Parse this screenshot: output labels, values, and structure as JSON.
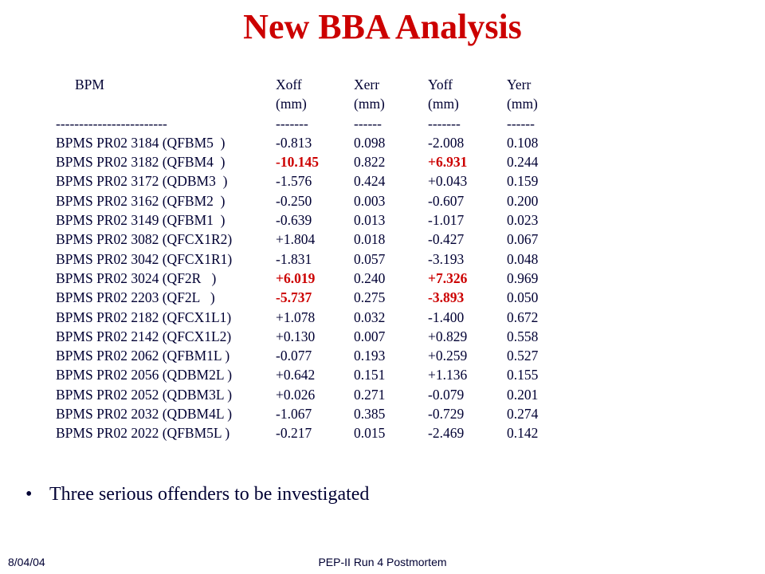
{
  "title": "New BBA Analysis",
  "table": {
    "header1": {
      "bpm": "BPM",
      "xoff": "Xoff",
      "xerr": "Xerr",
      "yoff": "Yoff",
      "yerr": "Yerr"
    },
    "header2": {
      "bpm": "",
      "xoff": "(mm)",
      "xerr": "(mm)",
      "yoff": "(mm)",
      "yerr": "(mm)"
    },
    "separator": {
      "bpm": "------------------------",
      "xoff": "-------",
      "xerr": "------",
      "yoff": "-------",
      "yerr": "------"
    },
    "rows": [
      {
        "bpm": "BPMS PR02 3184 (QFBM5  )",
        "xoff": "-0.813",
        "xerr": "0.098",
        "yoff": "-2.008",
        "yerr": "0.108",
        "xoff_hl": false,
        "yoff_hl": false
      },
      {
        "bpm": "BPMS PR02 3182 (QFBM4  )",
        "xoff": "-10.145",
        "xerr": "0.822",
        "yoff": "+6.931",
        "yerr": "0.244",
        "xoff_hl": true,
        "yoff_hl": true
      },
      {
        "bpm": "BPMS PR02 3172 (QDBM3  )",
        "xoff": "-1.576",
        "xerr": "0.424",
        "yoff": "+0.043",
        "yerr": "0.159",
        "xoff_hl": false,
        "yoff_hl": false
      },
      {
        "bpm": "BPMS PR02 3162 (QFBM2  )",
        "xoff": "-0.250",
        "xerr": "0.003",
        "yoff": "-0.607",
        "yerr": "0.200",
        "xoff_hl": false,
        "yoff_hl": false
      },
      {
        "bpm": "BPMS PR02 3149 (QFBM1  )",
        "xoff": "-0.639",
        "xerr": "0.013",
        "yoff": "-1.017",
        "yerr": "0.023",
        "xoff_hl": false,
        "yoff_hl": false
      },
      {
        "bpm": "BPMS PR02 3082 (QFCX1R2)",
        "xoff": "+1.804",
        "xerr": "0.018",
        "yoff": "-0.427",
        "yerr": "0.067",
        "xoff_hl": false,
        "yoff_hl": false
      },
      {
        "bpm": "BPMS PR02 3042 (QFCX1R1)",
        "xoff": "-1.831",
        "xerr": "0.057",
        "yoff": "-3.193",
        "yerr": "0.048",
        "xoff_hl": false,
        "yoff_hl": false
      },
      {
        "bpm": "BPMS PR02 3024 (QF2R   )",
        "xoff": "+6.019",
        "xerr": "0.240",
        "yoff": "+7.326",
        "yerr": "0.969",
        "xoff_hl": true,
        "yoff_hl": true
      },
      {
        "bpm": "BPMS PR02 2203 (QF2L   )",
        "xoff": "-5.737",
        "xerr": "0.275",
        "yoff": "-3.893",
        "yerr": "0.050",
        "xoff_hl": true,
        "yoff_hl": true
      },
      {
        "bpm": "BPMS PR02 2182 (QFCX1L1)",
        "xoff": "+1.078",
        "xerr": "0.032",
        "yoff": "-1.400",
        "yerr": "0.672",
        "xoff_hl": false,
        "yoff_hl": false
      },
      {
        "bpm": "BPMS PR02 2142 (QFCX1L2)",
        "xoff": "+0.130",
        "xerr": "0.007",
        "yoff": "+0.829",
        "yerr": "0.558",
        "xoff_hl": false,
        "yoff_hl": false
      },
      {
        "bpm": "BPMS PR02 2062 (QFBM1L )",
        "xoff": "-0.077",
        "xerr": "0.193",
        "yoff": "+0.259",
        "yerr": "0.527",
        "xoff_hl": false,
        "yoff_hl": false
      },
      {
        "bpm": "BPMS PR02 2056 (QDBM2L )",
        "xoff": "+0.642",
        "xerr": "0.151",
        "yoff": "+1.136",
        "yerr": "0.155",
        "xoff_hl": false,
        "yoff_hl": false
      },
      {
        "bpm": "BPMS PR02 2052 (QDBM3L )",
        "xoff": "+0.026",
        "xerr": "0.271",
        "yoff": "-0.079",
        "yerr": "0.201",
        "xoff_hl": false,
        "yoff_hl": false
      },
      {
        "bpm": "BPMS PR02 2032 (QDBM4L )",
        "xoff": "-1.067",
        "xerr": "0.385",
        "yoff": "-0.729",
        "yerr": "0.274",
        "xoff_hl": false,
        "yoff_hl": false
      },
      {
        "bpm": "BPMS PR02 2022 (QFBM5L )",
        "xoff": "-0.217",
        "xerr": "0.015",
        "yoff": "-2.469",
        "yerr": "0.142",
        "xoff_hl": false,
        "yoff_hl": false
      }
    ]
  },
  "bullet": "Three serious offenders to be investigated",
  "footer": {
    "date": "8/04/04",
    "center": "PEP-II Run 4 Postmortem"
  },
  "colors": {
    "title": "#cc0000",
    "highlight": "#cc0000",
    "text": "#000033"
  }
}
